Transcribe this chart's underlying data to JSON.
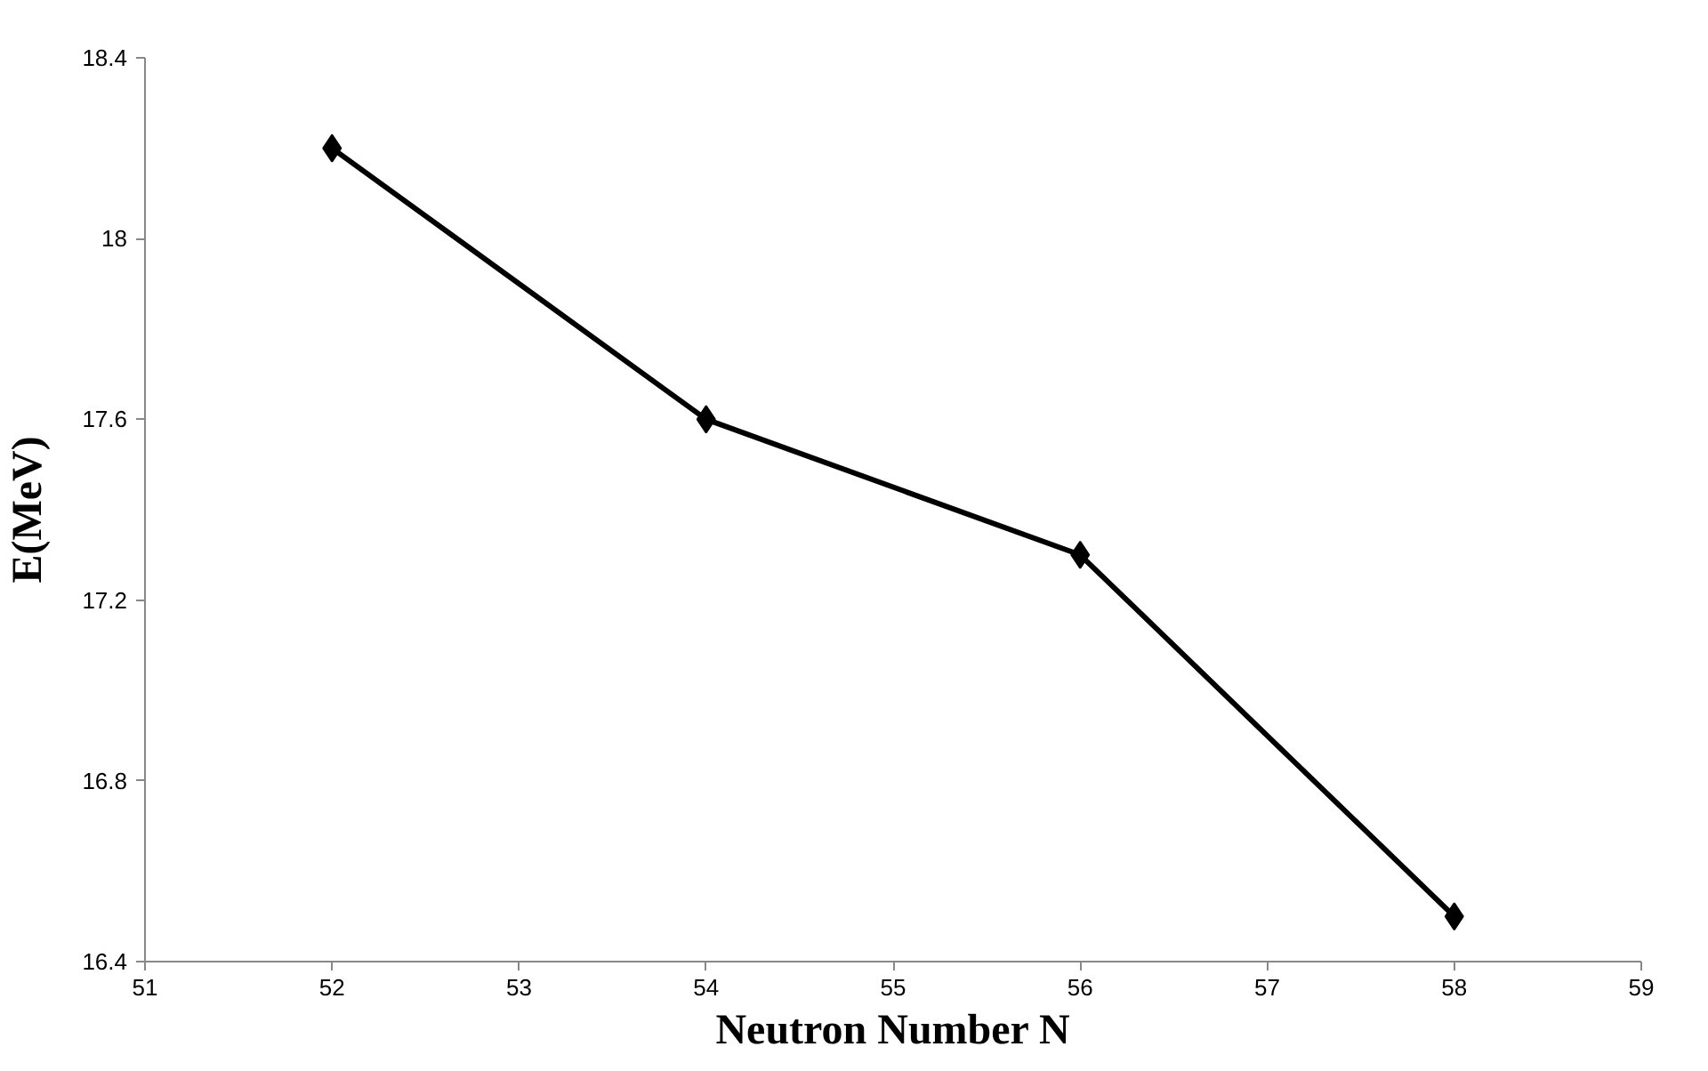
{
  "chart_data": {
    "type": "line",
    "xlabel": "Neutron Number N",
    "ylabel": "E(MeV)",
    "x": [
      52,
      54,
      56,
      58
    ],
    "series": [
      {
        "color": "#000000",
        "values": [
          18.2,
          17.6,
          17.3,
          16.5
        ]
      }
    ],
    "xlim": [
      51,
      59
    ],
    "xticks": [
      51,
      52,
      53,
      54,
      55,
      56,
      57,
      58,
      59
    ],
    "ylim": [
      16.4,
      18.4
    ],
    "yticks": [
      16.4,
      16.8,
      17.2,
      17.6,
      18,
      18.4
    ],
    "grid": false,
    "marker": "diamond",
    "line_style": "solid"
  }
}
